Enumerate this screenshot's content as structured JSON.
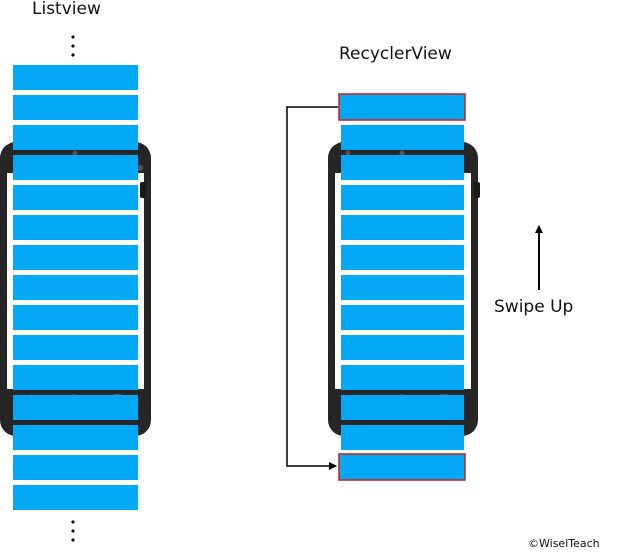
{
  "listview": {
    "title": "Listview"
  },
  "recyclerview": {
    "title": "RecyclerView",
    "gesture_label": "Swipe Up"
  },
  "footer": {
    "copyright": "©WiselTeach"
  },
  "colors": {
    "item_fill": "#03A9F4",
    "recycled_item_border": "#C62828",
    "phone_body": "#262626",
    "phone_screen": "#ffffff",
    "arrow": "#000000"
  },
  "icons": {
    "top_ellipsis": "vertical-ellipsis-icon",
    "bottom_ellipsis": "vertical-ellipsis-icon",
    "swipe_arrow": "arrow-up-icon",
    "recycle_connector": "recycle-path-arrow-icon"
  }
}
